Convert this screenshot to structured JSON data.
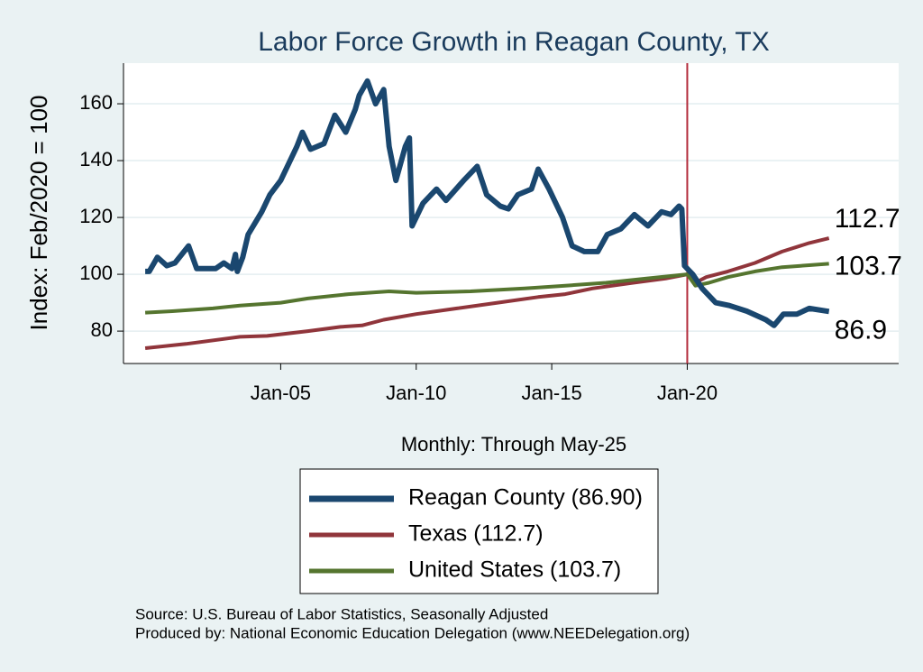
{
  "chart_data": {
    "type": "line",
    "title": "Labor Force Growth in Reagan  County, TX",
    "x_label": "Monthly: Through May-25",
    "y_label": "Index: Feb/2020 = 100",
    "xlim": [
      1999.2,
      2027.8
    ],
    "ylim": [
      68.6,
      174.3
    ],
    "xticks": [
      {
        "value": 2005,
        "label": "Jan-05"
      },
      {
        "value": 2010,
        "label": "Jan-10"
      },
      {
        "value": 2015,
        "label": "Jan-15"
      },
      {
        "value": 2020,
        "label": "Jan-20"
      }
    ],
    "yticks": [
      80,
      100,
      120,
      140,
      160
    ],
    "grid": true,
    "vline": 2020.0,
    "vline_color": "#b22c3c",
    "series": [
      {
        "name": "Reagan  County (86.90)",
        "color": "#1a476f",
        "width": 6,
        "x": [
          2000.0,
          2000.15,
          2000.45,
          2000.8,
          2001.1,
          2001.6,
          2001.9,
          2002.6,
          2002.9,
          2003.2,
          2003.33,
          2003.4,
          2003.6,
          2003.8,
          2004.3,
          2004.6,
          2005.0,
          2005.3,
          2005.6,
          2005.8,
          2006.1,
          2006.6,
          2007.0,
          2007.4,
          2007.75,
          2007.9,
          2008.2,
          2008.5,
          2008.8,
          2009.0,
          2009.25,
          2009.6,
          2009.75,
          2009.85,
          2010.25,
          2010.75,
          2011.1,
          2011.75,
          2012.25,
          2012.6,
          2013.1,
          2013.4,
          2013.75,
          2014.25,
          2014.5,
          2014.9,
          2015.4,
          2015.75,
          2016.2,
          2016.7,
          2017.05,
          2017.55,
          2018.05,
          2018.55,
          2019.05,
          2019.4,
          2019.7,
          2019.8,
          2019.9,
          2020.2,
          2020.55,
          2021.05,
          2021.55,
          2022.2,
          2022.9,
          2023.2,
          2023.55,
          2024.05,
          2024.5,
          2025.23
        ],
        "values": [
          101,
          101,
          106,
          103,
          104,
          110,
          102,
          102,
          104,
          102,
          107,
          101,
          106,
          114,
          122,
          128,
          133,
          139,
          145,
          150,
          144,
          146,
          156,
          150,
          158,
          163,
          168,
          160,
          165,
          145,
          133,
          145,
          148,
          117,
          125,
          130,
          126,
          133,
          138,
          128,
          124,
          123,
          128,
          130,
          137,
          130,
          120,
          110,
          108,
          108,
          114,
          116,
          121,
          117,
          122,
          121,
          124,
          123,
          103,
          100,
          95,
          90,
          89,
          87,
          84,
          82,
          86,
          86,
          88,
          86.9
        ]
      },
      {
        "name": "Texas (112.7)",
        "color": "#90353b",
        "width": 4,
        "x": [
          2000.0,
          2001.5,
          2003.5,
          2004.5,
          2006.0,
          2007.2,
          2008.0,
          2008.8,
          2010.0,
          2011.5,
          2013.0,
          2014.5,
          2015.5,
          2016.5,
          2018.0,
          2019.2,
          2020.0,
          2020.3,
          2020.7,
          2021.5,
          2022.5,
          2023.5,
          2024.5,
          2025.23
        ],
        "values": [
          74,
          75.5,
          78,
          78.3,
          80,
          81.5,
          82,
          84,
          86,
          88,
          90,
          92,
          93,
          95,
          97,
          98.5,
          100,
          97,
          99,
          101,
          104,
          108,
          111,
          112.7
        ]
      },
      {
        "name": "United States (103.7)",
        "color": "#55752f",
        "width": 4,
        "x": [
          2000.0,
          2001.0,
          2002.5,
          2003.5,
          2005.0,
          2006.0,
          2007.5,
          2009.0,
          2010.0,
          2012.0,
          2014.0,
          2015.5,
          2017.0,
          2018.5,
          2020.0,
          2020.3,
          2020.8,
          2021.5,
          2022.5,
          2023.5,
          2024.5,
          2025.23
        ],
        "values": [
          86.5,
          87,
          88,
          89,
          90,
          91.5,
          93,
          94,
          93.5,
          94,
          95,
          96,
          97,
          98.5,
          100,
          96,
          97,
          99,
          101,
          102.5,
          103.2,
          103.7
        ]
      }
    ],
    "end_labels": [
      "86.9",
      "112.7",
      "103.7"
    ],
    "notes": [
      "Source: U.S. Bureau of Labor Statistics, Seasonally Adjusted",
      "Produced by: National Economic Education Delegation (www.NEEDelegation.org)"
    ]
  }
}
